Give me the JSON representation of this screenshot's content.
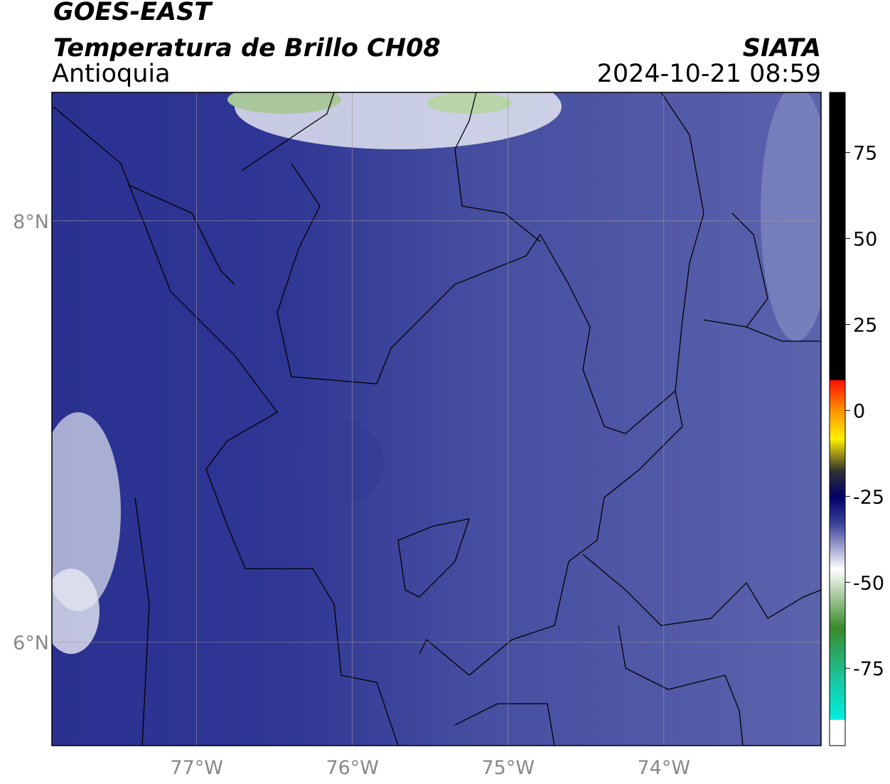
{
  "header": {
    "title": "GOES-EAST",
    "subtitle": "Temperatura de Brillo CH08",
    "region": "Antioquia",
    "source": "SIATA",
    "datetime": "2024-10-21 08:59"
  },
  "map": {
    "lonlim": [
      -77.93,
      -72.99
    ],
    "latlim": [
      5.51,
      8.61
    ],
    "lonticks": [
      {
        "value": -77,
        "label": "77°W"
      },
      {
        "value": -76,
        "label": "76°W"
      },
      {
        "value": -75,
        "label": "75°W"
      },
      {
        "value": -74,
        "label": "74°W"
      }
    ],
    "latticks": [
      {
        "value": 8,
        "label": "8°N"
      },
      {
        "value": 6,
        "label": "6°N"
      }
    ]
  },
  "colorbar": {
    "lim": [
      -97.5,
      92.5
    ],
    "ticks": [
      75,
      50,
      25,
      0,
      -25,
      -50,
      -75
    ]
  }
}
